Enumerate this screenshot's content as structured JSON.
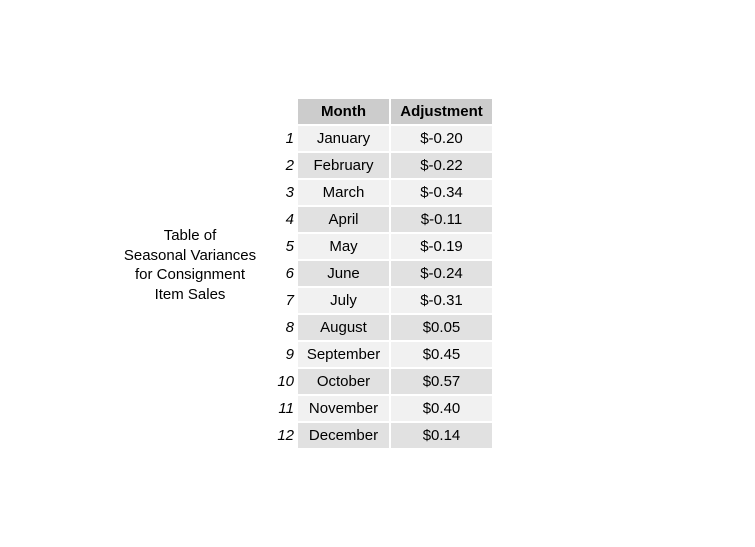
{
  "chart_data": {
    "type": "table",
    "title_lines": [
      "Table of",
      "Seasonal Variances",
      "for Consignment",
      "Item Sales"
    ],
    "columns": [
      "Month",
      "Adjustment"
    ],
    "rows": [
      {
        "index": "1",
        "month": "January",
        "adjustment": "$-0.20"
      },
      {
        "index": "2",
        "month": "February",
        "adjustment": "$-0.22"
      },
      {
        "index": "3",
        "month": "March",
        "adjustment": "$-0.34"
      },
      {
        "index": "4",
        "month": "April",
        "adjustment": "$-0.11"
      },
      {
        "index": "5",
        "month": "May",
        "adjustment": "$-0.19"
      },
      {
        "index": "6",
        "month": "June",
        "adjustment": "$-0.24"
      },
      {
        "index": "7",
        "month": "July",
        "adjustment": "$-0.31"
      },
      {
        "index": "8",
        "month": "August",
        "adjustment": "$0.05"
      },
      {
        "index": "9",
        "month": "September",
        "adjustment": "$0.45"
      },
      {
        "index": "10",
        "month": "October",
        "adjustment": "$0.57"
      },
      {
        "index": "11",
        "month": "November",
        "adjustment": "$0.40"
      },
      {
        "index": "12",
        "month": "December",
        "adjustment": "$0.14"
      }
    ],
    "colors": {
      "header_bg": "#cccccc",
      "row_light": "#f1f1f1",
      "row_dark": "#e1e1e1"
    }
  }
}
